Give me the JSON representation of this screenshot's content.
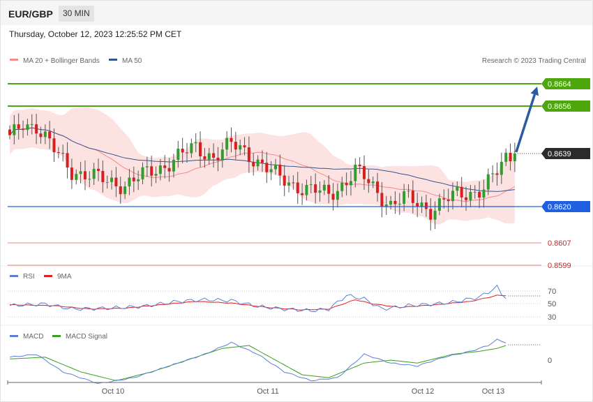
{
  "header": {
    "pair": "EUR/GBP",
    "timeframe": "30 MIN"
  },
  "timestamp": "Thursday, October 12, 2023 12:25:52 PM CET",
  "credit": "Research © 2023 Trading Central",
  "legend": {
    "main": [
      {
        "label": "MA 20 + Bollinger Bands",
        "color": "#f28b8b"
      },
      {
        "label": "MA 50",
        "color": "#33558f"
      }
    ],
    "rsi": [
      {
        "label": "RSI",
        "color": "#5b7fd6"
      },
      {
        "label": "9MA",
        "color": "#e02020"
      }
    ],
    "macd": [
      {
        "label": "MACD",
        "color": "#5b7fd6"
      },
      {
        "label": "MACD Signal",
        "color": "#3a9e1e"
      }
    ]
  },
  "levels": [
    {
      "value": "0.8664",
      "kind": "target",
      "color": "#4ca60c"
    },
    {
      "value": "0.8656",
      "kind": "resistance",
      "color": "#4ca60c"
    },
    {
      "value": "0.8639",
      "kind": "last",
      "color": "#2b2b2b"
    },
    {
      "value": "0.8620",
      "kind": "pivot",
      "color": "#1f5fe0"
    },
    {
      "value": "0.8607",
      "kind": "support",
      "color": "#e01a1a"
    },
    {
      "value": "0.8599",
      "kind": "support",
      "color": "#e01a1a"
    }
  ],
  "xaxis_labels": [
    "Oct 10",
    "Oct 11",
    "Oct 12",
    "Oct 13"
  ],
  "rsi_ticks": [
    "70",
    "50",
    "30"
  ],
  "macd_ticks": [
    "0"
  ],
  "chart_data": [
    {
      "type": "candlestick",
      "ylim": [
        0.8596,
        0.867
      ],
      "candle_count": 110,
      "anchors": [
        [
          0,
          0.8644
        ],
        [
          3,
          0.865
        ],
        [
          6,
          0.8649
        ],
        [
          10,
          0.864
        ],
        [
          14,
          0.8633
        ],
        [
          18,
          0.8631
        ],
        [
          22,
          0.8629
        ],
        [
          26,
          0.8628
        ],
        [
          30,
          0.8631
        ],
        [
          34,
          0.8634
        ],
        [
          38,
          0.8638
        ],
        [
          42,
          0.8641
        ],
        [
          46,
          0.8638
        ],
        [
          50,
          0.8642
        ],
        [
          53,
          0.864
        ],
        [
          57,
          0.8635
        ],
        [
          61,
          0.863
        ],
        [
          64,
          0.8628
        ],
        [
          68,
          0.8626
        ],
        [
          72,
          0.8624
        ],
        [
          75,
          0.8628
        ],
        [
          78,
          0.8633
        ],
        [
          80,
          0.863
        ],
        [
          83,
          0.8625
        ],
        [
          86,
          0.8621
        ],
        [
          89,
          0.8623
        ],
        [
          92,
          0.8621
        ],
        [
          95,
          0.8619
        ],
        [
          98,
          0.8622
        ],
        [
          101,
          0.8624
        ],
        [
          104,
          0.8625
        ],
        [
          107,
          0.8627
        ],
        [
          110,
          0.8632
        ],
        [
          112,
          0.8637
        ],
        [
          114,
          0.8639
        ]
      ],
      "projection": {
        "from": 0.8639,
        "to": 0.8664
      }
    },
    {
      "type": "line",
      "name": "RSI",
      "ylim": [
        20,
        80
      ],
      "anchors": [
        [
          0,
          48
        ],
        [
          8,
          50
        ],
        [
          14,
          44
        ],
        [
          22,
          45
        ],
        [
          30,
          47
        ],
        [
          38,
          53
        ],
        [
          44,
          55
        ],
        [
          50,
          54
        ],
        [
          56,
          47
        ],
        [
          62,
          44
        ],
        [
          68,
          42
        ],
        [
          72,
          44
        ],
        [
          76,
          60
        ],
        [
          80,
          56
        ],
        [
          84,
          44
        ],
        [
          90,
          48
        ],
        [
          96,
          50
        ],
        [
          100,
          52
        ],
        [
          106,
          58
        ],
        [
          110,
          70
        ],
        [
          111,
          62
        ],
        [
          112,
          58
        ]
      ]
    },
    {
      "type": "line",
      "name": "9MA",
      "ylim": [
        20,
        80
      ],
      "anchors": [
        [
          0,
          49
        ],
        [
          10,
          48
        ],
        [
          18,
          44
        ],
        [
          26,
          45
        ],
        [
          34,
          49
        ],
        [
          42,
          53
        ],
        [
          50,
          51
        ],
        [
          58,
          46
        ],
        [
          66,
          43
        ],
        [
          72,
          44
        ],
        [
          78,
          55
        ],
        [
          82,
          50
        ],
        [
          88,
          46
        ],
        [
          96,
          49
        ],
        [
          104,
          53
        ],
        [
          110,
          60
        ],
        [
          112,
          60
        ]
      ]
    },
    {
      "type": "line",
      "name": "MACD",
      "ylim": [
        -0.0005,
        0.0005
      ],
      "anchors": [
        [
          0,
          5e-05
        ],
        [
          6,
          0.0001
        ],
        [
          12,
          -0.0002
        ],
        [
          20,
          -0.0004
        ],
        [
          28,
          -0.0003
        ],
        [
          36,
          -0.0001
        ],
        [
          44,
          0.0001
        ],
        [
          50,
          0.0003
        ],
        [
          56,
          0.0001
        ],
        [
          62,
          -0.0002
        ],
        [
          68,
          -0.00035
        ],
        [
          74,
          -0.0003
        ],
        [
          80,
          0.0001
        ],
        [
          86,
          -5e-05
        ],
        [
          92,
          -0.0001
        ],
        [
          98,
          5e-05
        ],
        [
          104,
          0.00015
        ],
        [
          108,
          0.00025
        ],
        [
          110,
          0.00035
        ],
        [
          112,
          0.0003
        ]
      ]
    },
    {
      "type": "line",
      "name": "MACD Signal",
      "ylim": [
        -0.0005,
        0.0005
      ],
      "anchors": [
        [
          0,
          2e-05
        ],
        [
          8,
          5e-05
        ],
        [
          16,
          -0.0002
        ],
        [
          24,
          -0.00035
        ],
        [
          32,
          -0.0002
        ],
        [
          40,
          0.0
        ],
        [
          48,
          0.0002
        ],
        [
          54,
          0.00025
        ],
        [
          60,
          0.0
        ],
        [
          66,
          -0.00025
        ],
        [
          72,
          -0.0003
        ],
        [
          80,
          -5e-05
        ],
        [
          86,
          0.0
        ],
        [
          92,
          -5e-05
        ],
        [
          100,
          0.0001
        ],
        [
          106,
          0.00015
        ],
        [
          110,
          0.0002
        ],
        [
          112,
          0.00025
        ]
      ]
    }
  ]
}
